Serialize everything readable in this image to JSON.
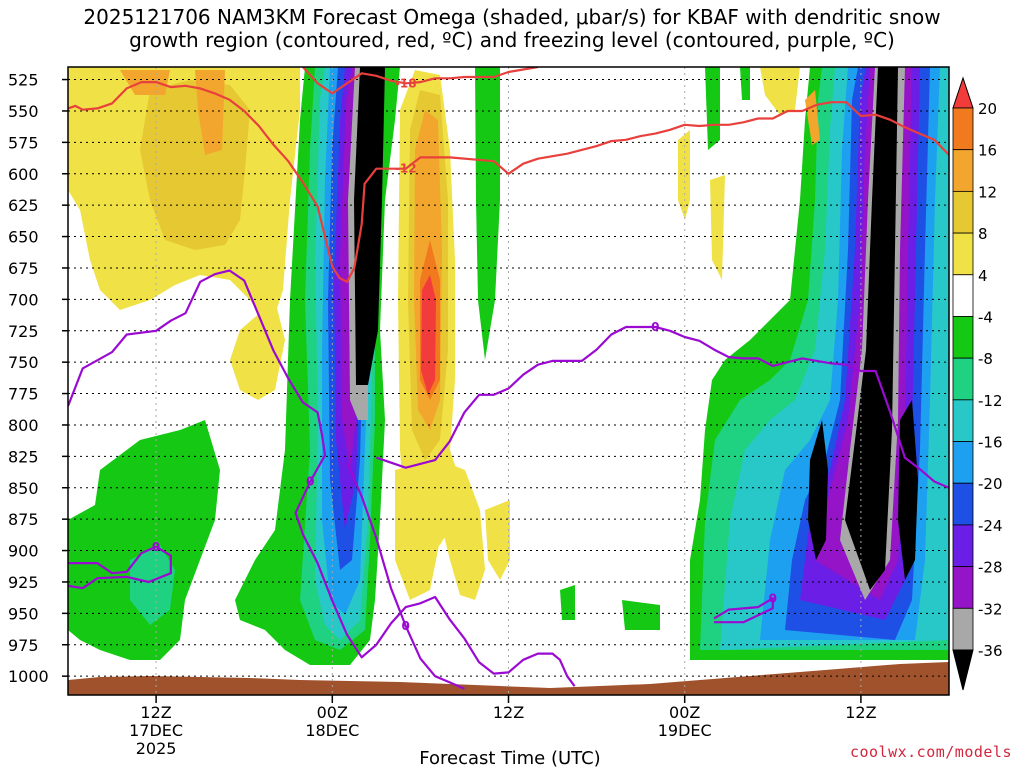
{
  "chart_data": {
    "type": "heatmap",
    "title_line1": "2025121706 NAM3KM Forecast Omega (shaded, μbar/s) for KBAF with dendritic snow",
    "title_line2": "growth region (contoured, red, ºC) and freezing level (contoured, purple, ºC)",
    "xlabel": "Forecast Time (UTC)",
    "y_ticks": [
      "525",
      "550",
      "575",
      "600",
      "625",
      "650",
      "675",
      "700",
      "725",
      "750",
      "775",
      "800",
      "825",
      "850",
      "875",
      "900",
      "925",
      "950",
      "975",
      "1000"
    ],
    "x_ticks": [
      {
        "hour": 12,
        "label": "12Z",
        "sub1": "17DEC",
        "sub2": "2025"
      },
      {
        "hour": 24,
        "label": "00Z",
        "sub1": "18DEC",
        "sub2": ""
      },
      {
        "hour": 36,
        "label": "12Z",
        "sub1": "",
        "sub2": ""
      },
      {
        "hour": 48,
        "label": "00Z",
        "sub1": "19DEC",
        "sub2": ""
      },
      {
        "hour": 60,
        "label": "12Z",
        "sub1": "",
        "sub2": ""
      }
    ],
    "x_range_hours": [
      6,
      66
    ],
    "p_range_hpa": [
      515,
      1015
    ],
    "colorbar": {
      "unit": "μbar/s",
      "levels": [
        "20",
        "16",
        "12",
        "8",
        "4",
        "-4",
        "-8",
        "-12",
        "-16",
        "-20",
        "-24",
        "-28",
        "-32",
        "-36"
      ],
      "colors": [
        "#f23c3c",
        "#f27a1e",
        "#f2a62e",
        "#e6c832",
        "#f0e246",
        "#ffffff",
        "#14c814",
        "#1ed282",
        "#28c8c8",
        "#1ea0f0",
        "#1e50e6",
        "#6a1ee6",
        "#9614c8",
        "#a8a8a8",
        "#000000"
      ]
    },
    "dgz_contours": [
      {
        "temp": -12,
        "label": "-12",
        "color": "#e8403c",
        "points": [
          [
            6,
            548
          ],
          [
            6.5,
            546
          ],
          [
            7,
            549
          ],
          [
            8,
            548
          ],
          [
            9,
            544
          ],
          [
            10,
            532
          ],
          [
            11,
            527
          ],
          [
            12,
            527
          ],
          [
            13,
            531
          ],
          [
            14,
            530
          ],
          [
            15,
            532
          ],
          [
            16,
            536
          ],
          [
            17,
            541
          ],
          [
            18,
            550
          ],
          [
            19,
            562
          ],
          [
            20,
            577
          ],
          [
            21,
            590
          ],
          [
            22,
            607
          ],
          [
            23,
            626
          ],
          [
            23.5,
            650
          ],
          [
            24,
            674
          ],
          [
            24.5,
            683
          ],
          [
            25,
            686
          ],
          [
            25.5,
            675
          ],
          [
            26,
            640
          ],
          [
            26.2,
            608
          ],
          [
            27,
            596
          ],
          [
            29,
            596
          ],
          [
            30,
            587
          ],
          [
            32,
            587
          ],
          [
            35,
            590
          ],
          [
            36,
            600
          ],
          [
            37,
            592
          ],
          [
            38,
            588
          ],
          [
            40,
            584
          ],
          [
            42,
            578
          ],
          [
            43,
            574
          ],
          [
            44,
            573
          ],
          [
            45,
            570
          ],
          [
            46,
            568
          ],
          [
            47,
            565
          ],
          [
            48,
            561
          ],
          [
            49,
            562
          ],
          [
            50,
            561
          ],
          [
            51,
            561
          ],
          [
            52,
            559
          ],
          [
            53,
            556
          ],
          [
            54,
            556
          ],
          [
            55,
            550
          ],
          [
            56,
            550
          ],
          [
            57,
            545
          ],
          [
            58,
            543
          ],
          [
            59,
            543
          ],
          [
            60,
            554
          ],
          [
            61,
            553
          ],
          [
            62,
            557
          ],
          [
            63,
            563
          ],
          [
            64,
            568
          ],
          [
            65,
            573
          ],
          [
            66,
            585
          ]
        ]
      },
      {
        "temp": -18,
        "label": "-18",
        "color": "#e8403c",
        "points": [
          [
            22,
            515
          ],
          [
            23,
            528
          ],
          [
            24,
            536
          ],
          [
            25,
            528
          ],
          [
            26,
            520
          ],
          [
            27,
            522
          ],
          [
            28,
            526
          ],
          [
            29,
            528
          ],
          [
            30,
            527
          ],
          [
            31,
            524
          ],
          [
            32,
            524
          ],
          [
            33,
            523
          ],
          [
            34,
            523
          ],
          [
            35,
            523
          ],
          [
            36,
            519
          ],
          [
            38,
            515
          ]
        ]
      }
    ],
    "freezing_contours": [
      {
        "temp": 0,
        "label": "0",
        "color": "#9a0ad2",
        "points": [
          [
            6,
            785
          ],
          [
            7,
            755
          ],
          [
            9,
            742
          ],
          [
            10,
            728
          ],
          [
            12,
            725
          ],
          [
            13,
            717
          ],
          [
            14,
            711
          ],
          [
            15,
            686
          ],
          [
            16,
            680
          ],
          [
            17,
            677
          ],
          [
            18,
            685
          ],
          [
            19,
            713
          ],
          [
            20,
            741
          ],
          [
            21,
            763
          ],
          [
            22,
            782
          ],
          [
            23,
            790
          ],
          [
            23.3,
            808
          ],
          [
            23.5,
            824
          ],
          [
            22.5,
            845
          ],
          [
            21.5,
            870
          ],
          [
            22,
            887
          ],
          [
            23,
            910
          ],
          [
            24,
            940
          ],
          [
            25,
            967
          ],
          [
            26,
            985
          ],
          [
            27,
            975
          ],
          [
            28,
            958
          ],
          [
            29,
            945
          ],
          [
            30,
            942
          ],
          [
            31,
            937
          ],
          [
            32,
            955
          ],
          [
            33,
            970
          ],
          [
            34,
            989
          ],
          [
            35,
            998
          ],
          [
            36,
            997
          ],
          [
            37,
            987
          ],
          [
            38,
            982
          ],
          [
            39,
            982
          ],
          [
            39.5,
            987
          ],
          [
            40,
            1000
          ],
          [
            40.5,
            1008
          ]
        ]
      },
      {
        "temp": 0,
        "label": "0",
        "color": "#9a0ad2",
        "points": [
          [
            25,
            830
          ],
          [
            26,
            857
          ],
          [
            27,
            890
          ],
          [
            28,
            930
          ],
          [
            29,
            960
          ],
          [
            30,
            986
          ],
          [
            31,
            1000
          ],
          [
            32,
            1005
          ],
          [
            33,
            1010
          ]
        ]
      },
      {
        "temp": 0,
        "label": "0",
        "color": "#9a0ad2",
        "points": [
          [
            27,
            826
          ],
          [
            29,
            834
          ],
          [
            31,
            828
          ],
          [
            32,
            813
          ],
          [
            33,
            790
          ],
          [
            34,
            776
          ],
          [
            35,
            776
          ],
          [
            36,
            771
          ],
          [
            37,
            760
          ],
          [
            38,
            752
          ],
          [
            39,
            749
          ],
          [
            40,
            749
          ],
          [
            41,
            749
          ],
          [
            42,
            740
          ],
          [
            43,
            728
          ],
          [
            44,
            722
          ],
          [
            45,
            722
          ],
          [
            46,
            722
          ],
          [
            47,
            725
          ],
          [
            48,
            730
          ],
          [
            49,
            733
          ],
          [
            50,
            740
          ],
          [
            51,
            746
          ],
          [
            52,
            747
          ],
          [
            53,
            747
          ],
          [
            54,
            753
          ],
          [
            55,
            750
          ],
          [
            56,
            747
          ],
          [
            57,
            749
          ],
          [
            58,
            751
          ],
          [
            59,
            752
          ],
          [
            60,
            757
          ],
          [
            61,
            757
          ],
          [
            62,
            790
          ],
          [
            63,
            826
          ],
          [
            64,
            835
          ],
          [
            65,
            845
          ],
          [
            66,
            850
          ]
        ]
      },
      {
        "temp": 0,
        "label": "0",
        "color": "#9a0ad2",
        "points": [
          [
            6,
            910
          ],
          [
            8,
            910
          ],
          [
            9,
            918
          ],
          [
            10,
            917
          ],
          [
            11,
            902
          ],
          [
            12,
            897
          ],
          [
            13,
            904
          ],
          [
            13,
            918
          ],
          [
            11.5,
            925
          ],
          [
            10,
            921
          ],
          [
            8,
            922
          ],
          [
            7,
            930
          ],
          [
            6,
            928
          ]
        ]
      },
      {
        "temp": 0,
        "label": "0",
        "color": "#9a0ad2",
        "points": [
          [
            50,
            954
          ],
          [
            51,
            947
          ],
          [
            53,
            945
          ],
          [
            54,
            938
          ],
          [
            54,
            946
          ],
          [
            52,
            957
          ],
          [
            50,
            957
          ]
        ]
      }
    ]
  }
}
